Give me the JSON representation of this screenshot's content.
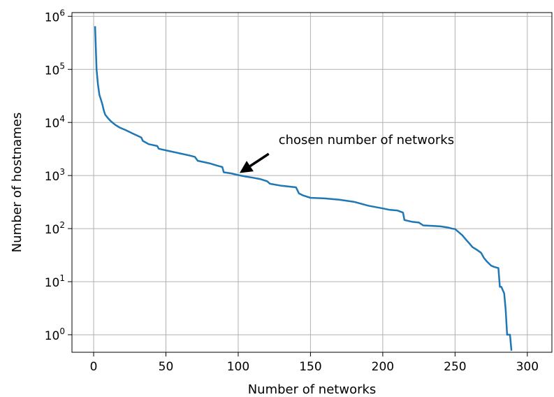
{
  "chart_data": {
    "type": "line",
    "xlabel": "Number of networks",
    "ylabel": "Number of hostnames",
    "xlim": [
      -15,
      317
    ],
    "ylim_log10": [
      -0.33,
      6.07
    ],
    "y_scale": "log",
    "grid": true,
    "x_ticks": [
      {
        "value": 0,
        "label": "0"
      },
      {
        "value": 50,
        "label": "50"
      },
      {
        "value": 100,
        "label": "100"
      },
      {
        "value": 150,
        "label": "150"
      },
      {
        "value": 200,
        "label": "200"
      },
      {
        "value": 250,
        "label": "250"
      },
      {
        "value": 300,
        "label": "300"
      }
    ],
    "y_ticks": [
      {
        "exp": 0,
        "base": "10",
        "sup": "0"
      },
      {
        "exp": 1,
        "base": "10",
        "sup": "1"
      },
      {
        "exp": 2,
        "base": "10",
        "sup": "2"
      },
      {
        "exp": 3,
        "base": "10",
        "sup": "3"
      },
      {
        "exp": 4,
        "base": "10",
        "sup": "4"
      },
      {
        "exp": 5,
        "base": "10",
        "sup": "5"
      },
      {
        "exp": 6,
        "base": "10",
        "sup": "6"
      }
    ],
    "series": [
      {
        "color": "#1f77b4",
        "x": [
          1,
          2,
          3,
          4,
          5,
          6,
          7,
          8,
          10,
          12,
          15,
          18,
          22,
          27,
          33,
          34,
          38,
          44,
          45,
          52,
          60,
          66,
          70,
          72,
          80,
          85,
          89,
          90,
          95,
          100,
          105,
          110,
          115,
          120,
          122,
          130,
          140,
          142,
          145,
          150,
          160,
          170,
          180,
          190,
          200,
          205,
          210,
          214,
          215,
          220,
          225,
          228,
          235,
          240,
          245,
          248,
          250,
          255,
          258,
          260,
          262,
          265,
          268,
          270,
          272,
          275,
          277,
          280,
          281,
          282,
          284,
          285,
          286,
          287,
          288,
          289
        ],
        "y": [
          650000,
          100000,
          52000,
          33000,
          27000,
          22000,
          17000,
          14000,
          12000,
          10500,
          9000,
          8000,
          7200,
          6200,
          5200,
          4500,
          3900,
          3600,
          3200,
          2900,
          2600,
          2400,
          2250,
          1900,
          1700,
          1550,
          1450,
          1150,
          1100,
          1020,
          960,
          910,
          860,
          780,
          700,
          640,
          600,
          460,
          420,
          380,
          370,
          350,
          320,
          270,
          240,
          225,
          220,
          200,
          145,
          135,
          130,
          115,
          112,
          110,
          105,
          100,
          98,
          75,
          60,
          52,
          45,
          40,
          35,
          28,
          24,
          20,
          19,
          18,
          8,
          8,
          6,
          3,
          1,
          1,
          1,
          0.5
        ]
      }
    ],
    "annotations": [
      {
        "text": "chosen number of networks",
        "xy": [
          100,
          1020
        ],
        "xytext": [
          125,
          4700
        ]
      }
    ]
  }
}
